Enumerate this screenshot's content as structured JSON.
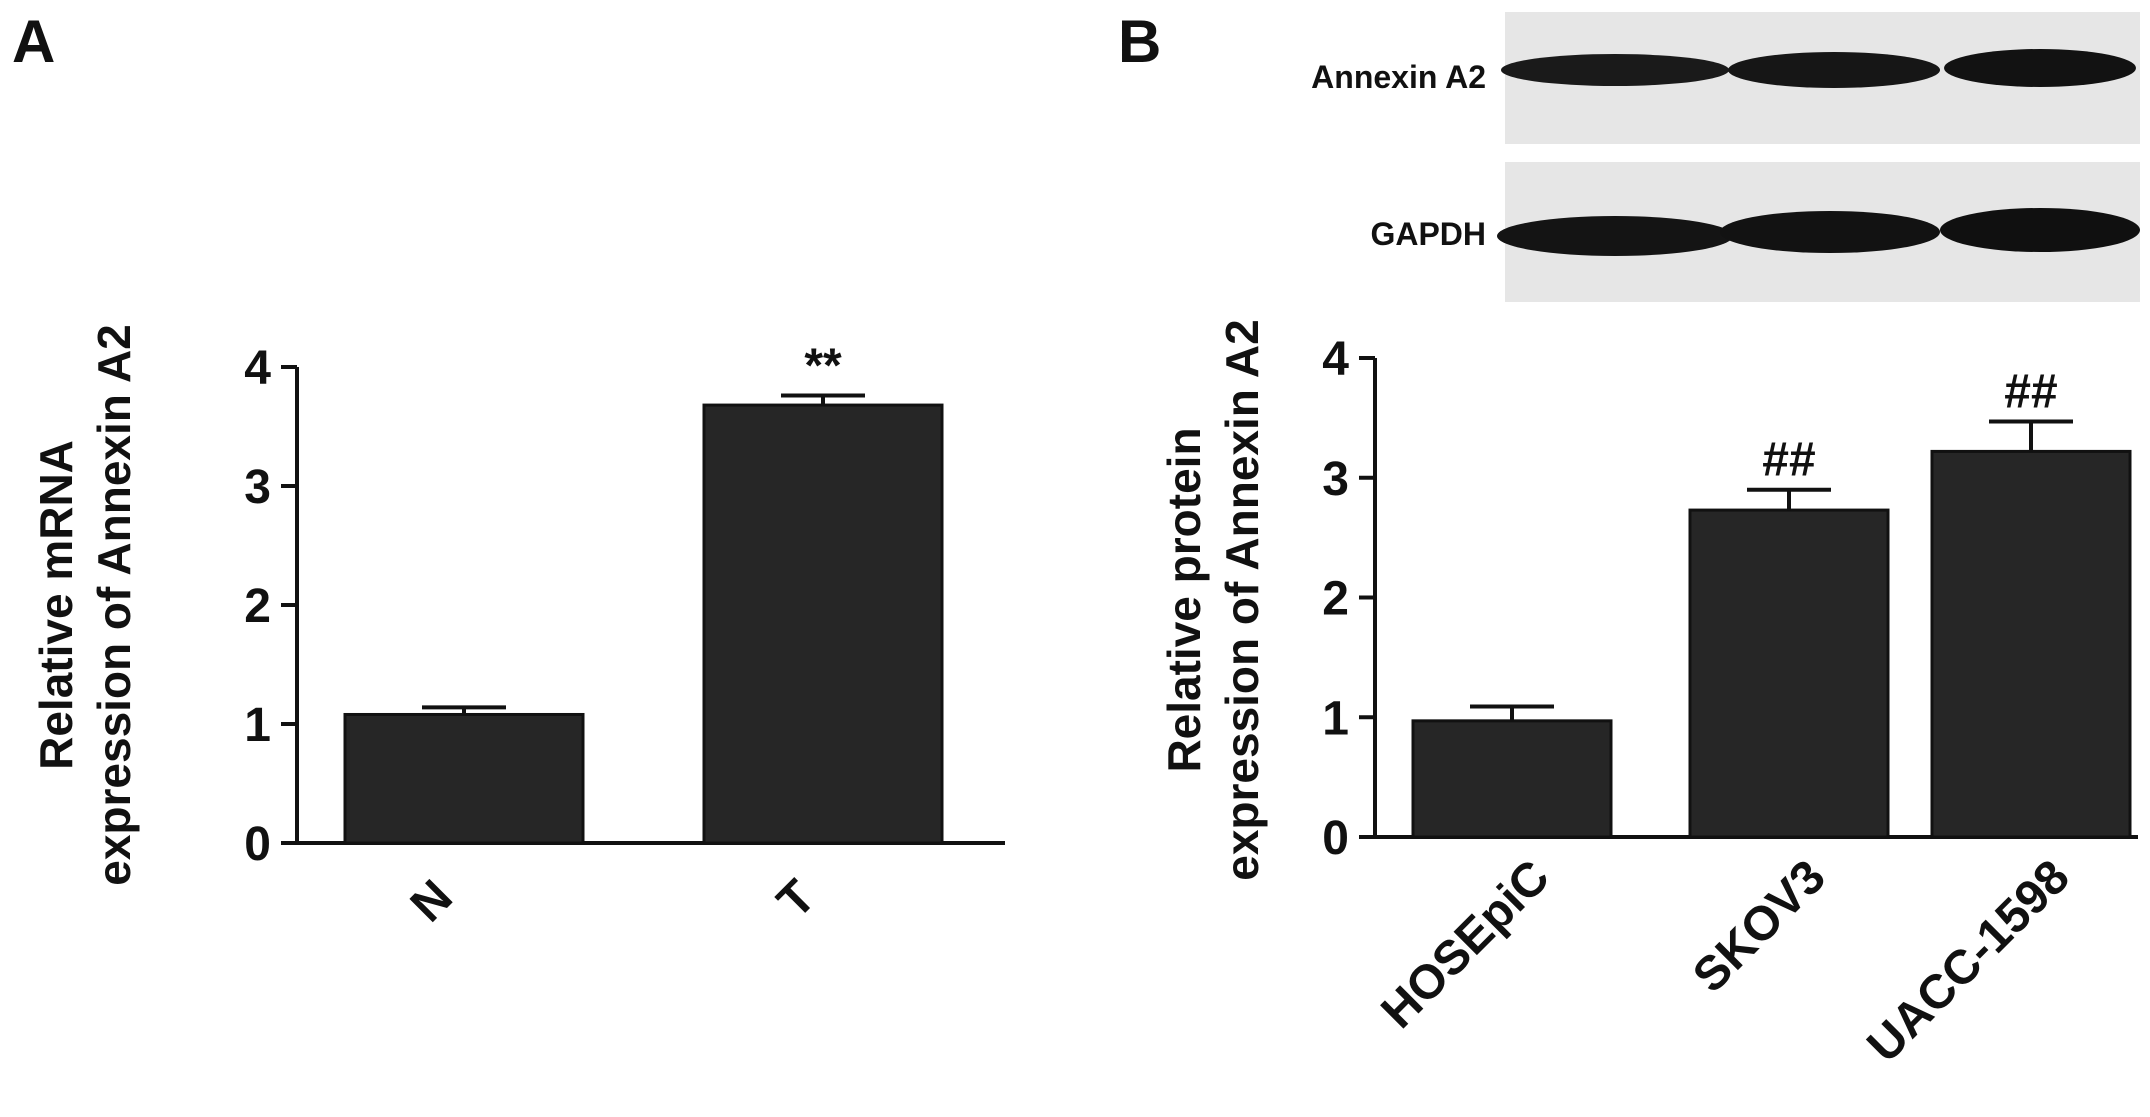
{
  "panels": {
    "a_label": "A",
    "b_label": "B"
  },
  "western_blot": {
    "rows": [
      {
        "label": "Annexin A2"
      },
      {
        "label": "GAPDH"
      }
    ]
  },
  "colors": {
    "bar_fill": "#262626",
    "axis": "#111111",
    "blot_background": "#e6e6e6",
    "band": "#1a1a1a"
  },
  "chart_data": [
    {
      "type": "bar",
      "panel": "A",
      "categories": [
        "N",
        "T"
      ],
      "values": [
        1.08,
        3.68
      ],
      "errors": [
        0.06,
        0.08
      ],
      "annotations": [
        "",
        "**"
      ],
      "title": "",
      "xlabel": "",
      "ylabel_lines": [
        "Relative mRNA",
        "expression of Annexin A2"
      ],
      "ylim": [
        0,
        4
      ],
      "yticks": [
        "0",
        "1",
        "2",
        "3",
        "4"
      ],
      "grid": false,
      "legend": "none"
    },
    {
      "type": "bar",
      "panel": "B",
      "categories": [
        "HOSEpiC",
        "SKOV3",
        "UACC-1598"
      ],
      "values": [
        0.97,
        2.73,
        3.22
      ],
      "errors": [
        0.12,
        0.17,
        0.25
      ],
      "annotations": [
        "",
        "##",
        "##"
      ],
      "title": "",
      "xlabel": "",
      "ylabel_lines": [
        "Relative protein",
        "expression of Annexin A2"
      ],
      "ylim": [
        0,
        4
      ],
      "yticks": [
        "0",
        "1",
        "2",
        "3",
        "4"
      ],
      "grid": false,
      "legend": "none"
    }
  ]
}
